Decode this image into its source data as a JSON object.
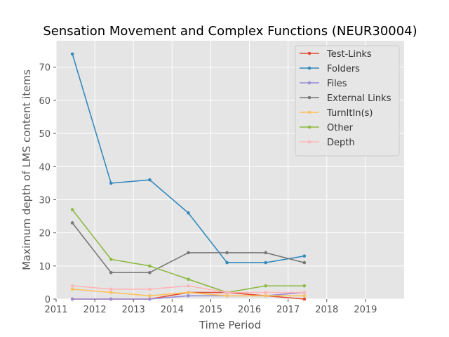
{
  "chart_data": {
    "type": "line",
    "title": "Sensation Movement and Complex Functions (NEUR30004)",
    "xlabel": "Time Period",
    "ylabel": "Maximum depth of LMS content items",
    "xlim": [
      2011,
      2020
    ],
    "ylim": [
      0,
      78
    ],
    "xticks": [
      2011,
      2012,
      2013,
      2014,
      2015,
      2016,
      2017,
      2018,
      2019
    ],
    "yticks": [
      0,
      10,
      20,
      30,
      40,
      50,
      60,
      70
    ],
    "grid": true,
    "legend_position": "top-right",
    "x": [
      2011.42,
      2012.42,
      2013.42,
      2014.42,
      2015.42,
      2016.42,
      2017.42
    ],
    "series": [
      {
        "name": "Test-Links",
        "color": "#e24a33",
        "values": [
          0,
          0,
          0,
          2,
          2,
          1,
          0
        ]
      },
      {
        "name": "Folders",
        "color": "#348abd",
        "values": [
          74,
          35,
          36,
          26,
          11,
          11,
          13
        ]
      },
      {
        "name": "Files",
        "color": "#988ed5",
        "values": [
          0,
          0,
          0,
          1,
          1,
          1,
          2
        ]
      },
      {
        "name": "External Links",
        "color": "#777777",
        "values": [
          23,
          8,
          8,
          14,
          14,
          14,
          11
        ]
      },
      {
        "name": "TurnItIn(s)",
        "color": "#fbc15e",
        "values": [
          3,
          2,
          1,
          2,
          1,
          1,
          1
        ]
      },
      {
        "name": "Other",
        "color": "#8eba42",
        "values": [
          27,
          12,
          10,
          6,
          2,
          4,
          4
        ]
      },
      {
        "name": "Depth",
        "color": "#ffb5b8",
        "values": [
          4,
          3,
          3,
          4,
          2,
          2,
          2
        ]
      }
    ]
  }
}
